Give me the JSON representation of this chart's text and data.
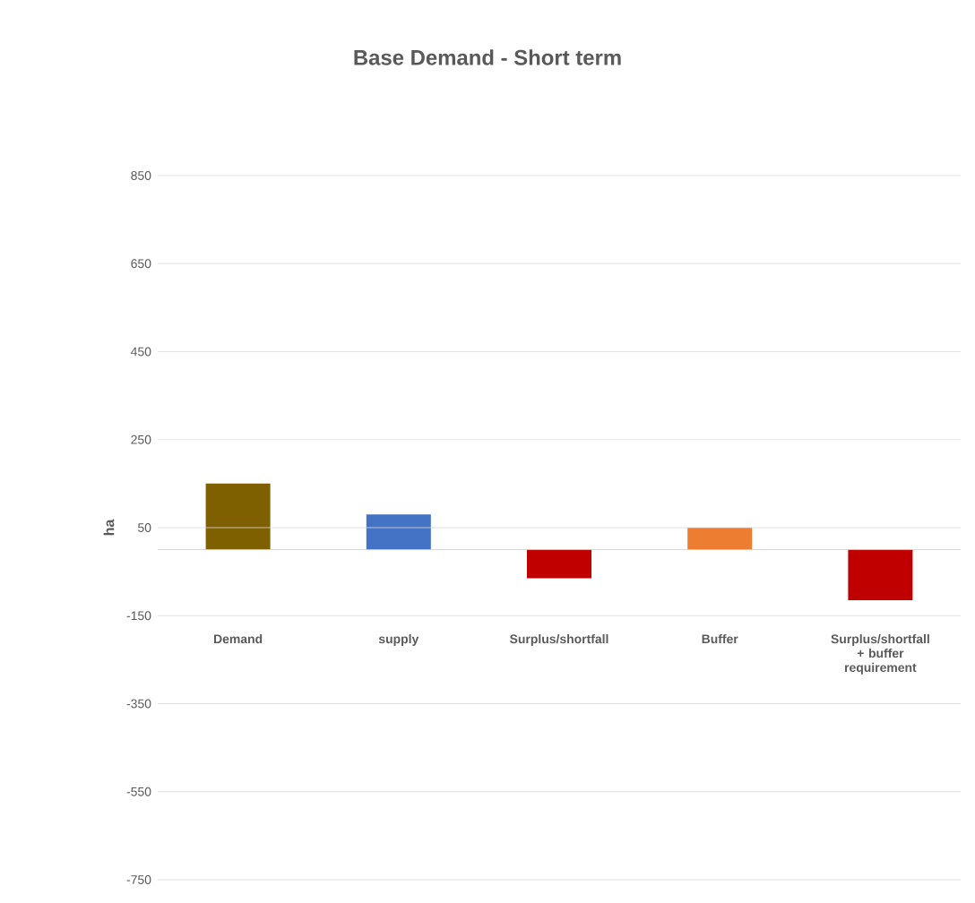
{
  "chart_data": {
    "type": "bar",
    "title": "Base Demand - Short term",
    "ylabel": "ha",
    "categories": [
      "Demand",
      "supply",
      "Surplus/shortfall",
      "Buffer",
      "Surplus/shortfall + buffer requirement"
    ],
    "values": [
      150,
      80,
      -65,
      50,
      -115
    ],
    "colors": [
      "#7f6000",
      "#4472c4",
      "#c00000",
      "#ed7d31",
      "#c00000"
    ],
    "ylim": [
      -750,
      850
    ],
    "yticks": [
      -750,
      -550,
      -350,
      -150,
      50,
      250,
      450,
      650,
      850
    ],
    "grid": "y"
  }
}
